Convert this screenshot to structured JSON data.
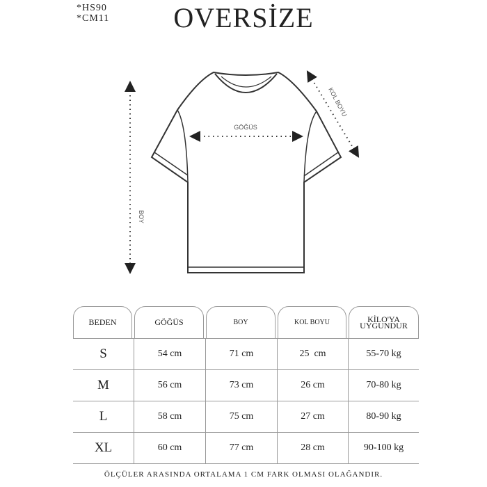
{
  "codes": [
    "*HS90",
    "*CM11"
  ],
  "title": "OVERSİZE",
  "diagram": {
    "chest_label": "GÖĞÜS",
    "sleeve_label": "KOL BOYU",
    "length_label": "BOY"
  },
  "table": {
    "headers": [
      "BEDEN",
      "GÖĞÜS",
      "BOY",
      "KOL BOYU",
      "KİLO'YA UYGUNDUR"
    ],
    "rows": [
      [
        "S",
        "54 cm",
        "71 cm",
        "25  cm",
        "55-70 kg"
      ],
      [
        "M",
        "56 cm",
        "73 cm",
        "26 cm",
        "70-80 kg"
      ],
      [
        "L",
        "58 cm",
        "75 cm",
        "27 cm",
        "80-90 kg"
      ],
      [
        "XL",
        "60 cm",
        "77 cm",
        "28 cm",
        "90-100 kg"
      ]
    ]
  },
  "footer": "ÖLÇÜLER ARASINDA ORTALAMA 1 CM FARK OLMASI OLAĞANDIR."
}
